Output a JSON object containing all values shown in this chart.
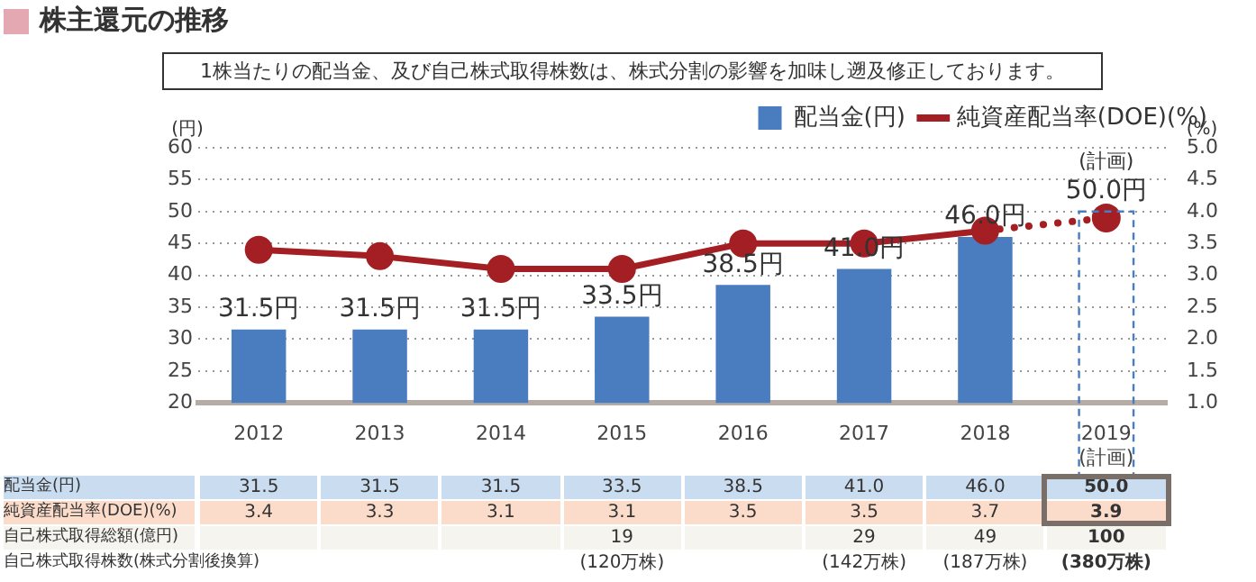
{
  "chart_data": {
    "type": "bar",
    "title": "株主還元の推移",
    "subtitle": "1株当たりの配当金、及び自己株式取得株数は、株式分割の影響を加味し遡及修正しております。",
    "ylabel": "(円)",
    "y2label": "(%)",
    "categories": [
      "2012",
      "2013",
      "2014",
      "2015",
      "2016",
      "2017",
      "2018",
      "2019\n(計画)"
    ],
    "series": [
      {
        "name": "配当金(円)",
        "color": "#4a7cc0",
        "values": [
          31.5,
          31.5,
          31.5,
          33.5,
          38.5,
          41.0,
          46.0,
          null
        ],
        "value_labels": [
          "31.5円",
          "31.5円",
          "31.5円",
          "33.5円",
          "38.5円",
          "41.0円",
          "46.0円",
          null
        ]
      },
      {
        "color": "#4a7cc0",
        "line_style": "dashed",
        "values": [
          null,
          null,
          null,
          null,
          null,
          null,
          null,
          50.0
        ],
        "value_labels": [
          null,
          null,
          null,
          null,
          null,
          null,
          null,
          "50.0円"
        ]
      },
      {
        "name": "純資産配当率(DOE)(%)",
        "type": "line",
        "axis": "y2",
        "color": "#a31f24",
        "line_style": "solid",
        "values": [
          3.4,
          3.3,
          3.1,
          3.1,
          3.5,
          3.5,
          3.7,
          null
        ]
      },
      {
        "type": "line",
        "axis": "y2",
        "color": "#a31f24",
        "line_style": "dotted",
        "values": [
          null,
          null,
          null,
          null,
          null,
          null,
          3.7,
          3.9
        ]
      }
    ],
    "annotations": [
      {
        "text": "(計画)",
        "x": "2019\n(計画)",
        "y": 50.0
      },
      "配当金(円)",
      "31.5",
      "31.5",
      "31.5",
      "33.5",
      "38.5",
      "41.0",
      "46.0",
      "50.0",
      "純資産配当率(DOE)(%)",
      "3.4",
      "3.3",
      "3.1",
      "3.1",
      "3.5",
      "3.5",
      "3.7",
      "3.9",
      "自己株式取得総額(億円)",
      {
        "text": "19",
        "x": "2015"
      },
      {
        "text": "29",
        "x": "2017"
      },
      {
        "text": "49",
        "x": "2018"
      },
      {
        "text": "100",
        "x": "2019\n(計画)"
      },
      "自己株式取得株数(株式分割後換算)",
      "(120万株)",
      "(142万株)",
      "(187万株)",
      "(380万株)"
    ],
    "ylim": [
      20,
      60
    ],
    "yticks": [
      20,
      25,
      30,
      35,
      40,
      45,
      50,
      55,
      60
    ],
    "y2lim": [
      1,
      5
    ],
    "y2ticks": [
      {
        "value": 1,
        "label": "1.0"
      },
      {
        "value": 1.5,
        "label": "1.5"
      },
      {
        "value": 2,
        "label": "2.0"
      },
      {
        "value": 2.5,
        "label": "2.5"
      },
      {
        "value": 3,
        "label": "3.0"
      },
      {
        "value": 3.5,
        "label": "3.5"
      },
      {
        "value": 4,
        "label": "4.0"
      },
      {
        "value": 4.5,
        "label": "4.5"
      },
      {
        "value": 5,
        "label": "5.0"
      }
    ],
    "grid": "y",
    "legend": "top right",
    "marker": "circle"
  }
}
